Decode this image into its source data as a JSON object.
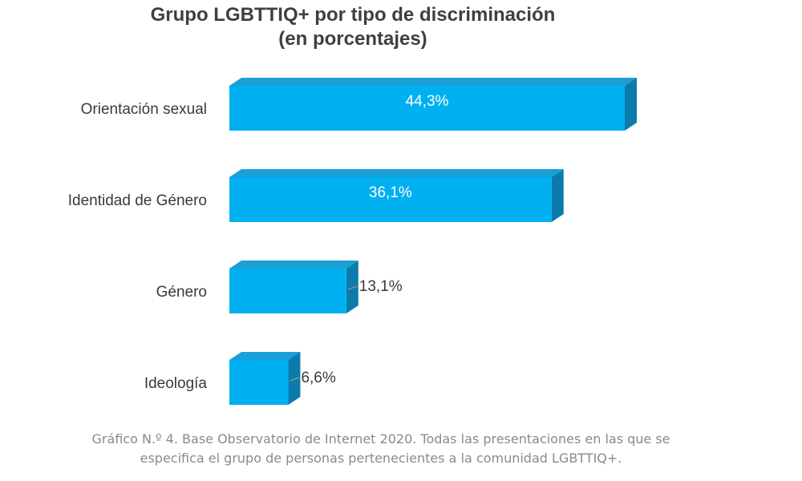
{
  "chart_data": {
    "type": "bar",
    "orientation": "horizontal",
    "title": "Grupo LGBTTIQ+  por tipo  de discriminación",
    "subtitle": "(en porcentajes)",
    "categories": [
      "Orientación sexual",
      "Identidad de Género",
      "Género",
      "Ideología"
    ],
    "values": [
      44.3,
      36.1,
      13.1,
      6.6
    ],
    "value_labels": [
      "44,3%",
      "36,1%",
      "13,1%",
      "6,6%"
    ],
    "unit": "%",
    "xlim": [
      0,
      45
    ],
    "grid": false,
    "legend": "none",
    "style": "3d",
    "colors": {
      "bar_front": "#00b0f0",
      "bar_top": "#1a9fd6",
      "bar_side": "#0a7bab"
    }
  },
  "caption": {
    "line1": "Gráfico N.º 4. Base Observatorio de Internet 2020. Todas las presentaciones en las que se",
    "line2": "especifica el grupo de personas pertenecientes a la comunidad LGBTTIQ+."
  }
}
